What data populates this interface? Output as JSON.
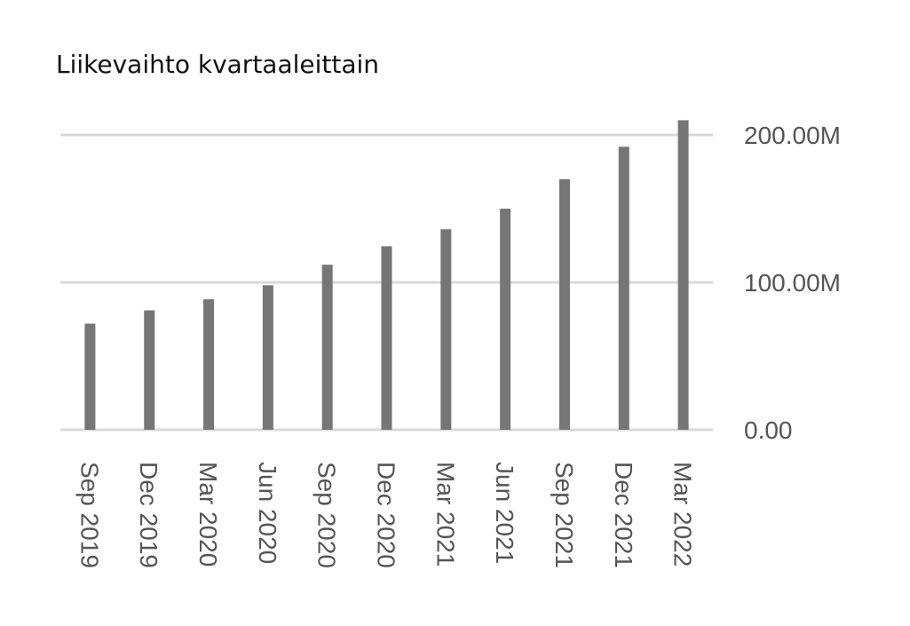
{
  "chart_data": {
    "type": "bar",
    "title": "Liikevaihto kvartaaleittain",
    "categories": [
      "Sep 2019",
      "Dec 2019",
      "Mar 2020",
      "Jun 2020",
      "Sep 2020",
      "Dec 2020",
      "Mar 2021",
      "Jun 2021",
      "Sep 2021",
      "Dec 2021",
      "Mar 2022"
    ],
    "series": [
      {
        "values": [
          72000000,
          81000000,
          88500000,
          98000000,
          112000000,
          124500000,
          136000000,
          150000000,
          170000000,
          192000000,
          210000000
        ]
      }
    ],
    "y_ticks": [
      "0.00",
      "100.00M",
      "200.00M"
    ],
    "y_tick_values": [
      0,
      100000000,
      200000000
    ],
    "ylim": [
      0,
      210000000
    ],
    "y_axis_side": "right",
    "grid": true,
    "legend": "none",
    "bar_color": "#767676",
    "grid_color": "#d9d9d9"
  }
}
